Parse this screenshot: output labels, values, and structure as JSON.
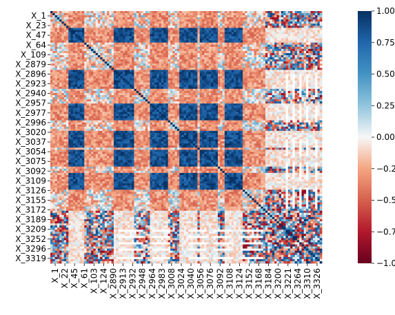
{
  "chart_data": {
    "type": "heatmap",
    "title": "",
    "xlabel": "",
    "ylabel": "",
    "colormap": "RdBu",
    "vmin": -1.0,
    "vmax": 1.0,
    "xtick_labels": [
      "X_1",
      "X_22",
      "X_45",
      "X_61",
      "X_103",
      "X_124",
      "X_2890",
      "X_2913",
      "X_2932",
      "X_2948",
      "X_2964",
      "X_2983",
      "X_3008",
      "X_3024",
      "X_3040",
      "X_3056",
      "X_3076",
      "X_3092",
      "X_3108",
      "X_3124",
      "X_3152",
      "X_3168",
      "X_3184",
      "X_3200",
      "X_3221",
      "X_3264",
      "X_3310",
      "X_3326"
    ],
    "ytick_labels": [
      "X_1",
      "X_23",
      "X_47",
      "X_64",
      "X_109",
      "X_2879",
      "X_2896",
      "X_2923",
      "X_2940",
      "X_2957",
      "X_2977",
      "X_2996",
      "X_3020",
      "X_3037",
      "X_3054",
      "X_3075",
      "X_3092",
      "X_3109",
      "X_3126",
      "X_3155",
      "X_3172",
      "X_3189",
      "X_3209",
      "X_3252",
      "X_3296",
      "X_3319"
    ],
    "colorbar_ticks": [
      1.0,
      0.75,
      0.5,
      0.25,
      0.0,
      -0.25,
      -0.5,
      -0.75,
      -1.0
    ],
    "colorbar_tick_labels": [
      "1.00",
      "0.75",
      "0.50",
      "0.25",
      "0.00",
      "−0.25",
      "−0.50",
      "−0.75",
      "−1.00"
    ],
    "colors": {
      "strong_positive": "#08306b",
      "positive": "#2166ac",
      "zero": "#f7f7f7",
      "negative": "#d6604d",
      "strong_negative": "#67001f",
      "missing": "#ffffff"
    }
  }
}
